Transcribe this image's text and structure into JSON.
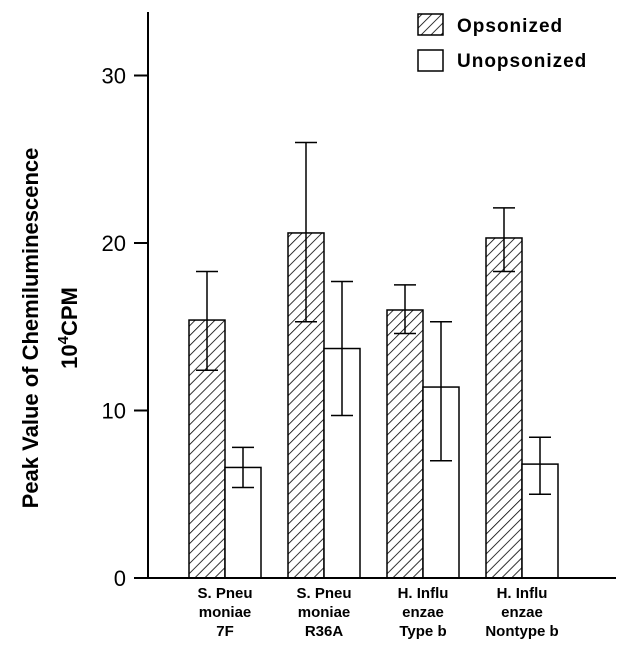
{
  "chart_data": {
    "type": "bar",
    "title": "",
    "xlabel": "",
    "ylabel": [
      "Peak Value of Chemiluminescence",
      "10",
      "4",
      "CPM"
    ],
    "ylim": [
      0,
      34
    ],
    "yticks": [
      0,
      10,
      20,
      30
    ],
    "grid": false,
    "legend_position": "top-right",
    "categories": [
      [
        "S. Pneu",
        "moniae",
        "7F"
      ],
      [
        "S. Pneu",
        "moniae",
        "R36A"
      ],
      [
        "H. Influ",
        "enzae",
        "Type b"
      ],
      [
        "H. Influ",
        "enzae",
        "Nontype b"
      ]
    ],
    "series": [
      {
        "name": "Opsonized",
        "pattern": "hatched",
        "values": [
          15.4,
          20.6,
          16.0,
          20.3
        ],
        "error_low": [
          12.4,
          15.3,
          14.6,
          18.3
        ],
        "error_high": [
          18.3,
          26.0,
          17.5,
          22.1
        ]
      },
      {
        "name": "Unopsonized",
        "pattern": "open",
        "values": [
          6.6,
          13.7,
          11.4,
          6.8
        ],
        "error_low": [
          5.4,
          9.7,
          7.0,
          5.0
        ],
        "error_high": [
          7.8,
          17.7,
          15.3,
          8.4
        ]
      }
    ]
  }
}
